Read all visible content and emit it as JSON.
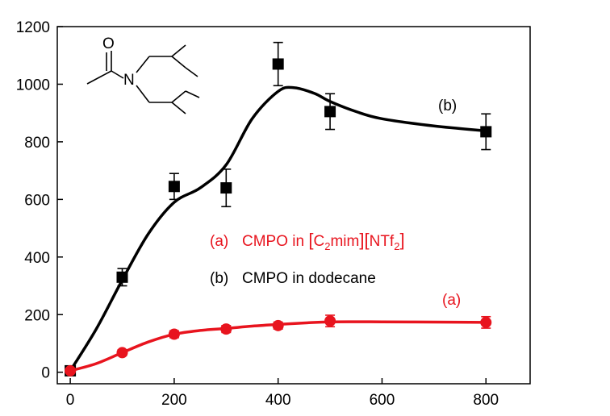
{
  "chart_data": {
    "type": "line",
    "title": "",
    "xlabel": "",
    "ylabel": "",
    "xlim": [
      -25,
      885
    ],
    "ylim": [
      -40,
      1200
    ],
    "xticks": [
      0,
      200,
      400,
      600,
      800
    ],
    "yticks": [
      0,
      200,
      400,
      600,
      800,
      1000,
      1200
    ],
    "series": [
      {
        "name": "CMPO in dodecane",
        "color": "#000000",
        "marker": "square",
        "x": [
          0,
          100,
          200,
          300,
          400,
          500,
          800
        ],
        "y": [
          5,
          330,
          645,
          640,
          1070,
          905,
          835
        ],
        "err": [
          8,
          30,
          45,
          65,
          75,
          62,
          62
        ],
        "curve": [
          [
            0,
            5
          ],
          [
            50,
            150
          ],
          [
            100,
            320
          ],
          [
            150,
            480
          ],
          [
            200,
            590
          ],
          [
            250,
            640
          ],
          [
            300,
            720
          ],
          [
            350,
            880
          ],
          [
            400,
            975
          ],
          [
            430,
            988
          ],
          [
            470,
            968
          ],
          [
            500,
            940
          ],
          [
            550,
            905
          ],
          [
            600,
            880
          ],
          [
            700,
            855
          ],
          [
            800,
            838
          ]
        ]
      },
      {
        "name": "CMPO in [C2mim][NTf2]",
        "color": "#e8141e",
        "marker": "circle",
        "x": [
          0,
          100,
          200,
          300,
          400,
          500,
          800
        ],
        "y": [
          5,
          68,
          132,
          150,
          162,
          178,
          173
        ],
        "err": [
          6,
          10,
          12,
          12,
          12,
          20,
          20
        ],
        "curve": [
          [
            0,
            5
          ],
          [
            50,
            30
          ],
          [
            100,
            68
          ],
          [
            150,
            105
          ],
          [
            200,
            132
          ],
          [
            250,
            145
          ],
          [
            300,
            152
          ],
          [
            350,
            160
          ],
          [
            400,
            166
          ],
          [
            450,
            171
          ],
          [
            500,
            175
          ],
          [
            600,
            175
          ],
          [
            700,
            174
          ],
          [
            800,
            173
          ]
        ]
      }
    ],
    "labels": {
      "curve_b": "(b)",
      "curve_a": "(a)",
      "legend_a_tag": "(a)",
      "legend_a_prefix": "CMPO in ",
      "legend_a_bracket1_open": "[",
      "legend_a_c": "C",
      "legend_a_sub1": "2",
      "legend_a_mim": "mim",
      "legend_a_bracket1_close": "]",
      "legend_a_bracket2_open": "[",
      "legend_a_ntf": "NTf",
      "legend_a_sub2": "2",
      "legend_a_bracket2_close": "]",
      "legend_b_tag": "(b)",
      "legend_b_text": "CMPO in dodecane"
    },
    "structure_atoms": {
      "oxygen": "O",
      "nitrogen": "N"
    },
    "grid": false,
    "legend_position": "center-right"
  }
}
